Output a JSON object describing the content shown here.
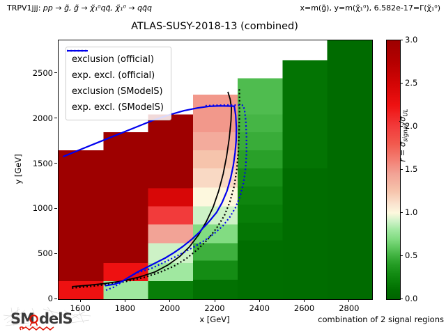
{
  "header": {
    "process_prefix": "TRPV1jjj:",
    "process_math": "pp → g̃, g̃ → χ̃₁⁰qq̄, χ̃₁⁰ → qq̄q",
    "params": "x=m(g̃), y=m(χ̃₁⁰), 6.582e-17=Γ(χ̃₁⁰)"
  },
  "title": "ATLAS-SUSY-2018-13 (combined)",
  "footer": {
    "note": "combination of 2 signal regions"
  },
  "logo": {
    "text_left": "SM",
    "text_right": "delS"
  },
  "chart_data": {
    "type": "heatmap",
    "title": "ATLAS-SUSY-2018-13 (combined)",
    "xlabel": "x [GeV]",
    "ylabel": "y [GeV]",
    "xlim": [
      1500,
      2900
    ],
    "ylim": [
      0,
      2870
    ],
    "x_ticks": [
      1600,
      1800,
      2000,
      2200,
      2400,
      2600,
      2800
    ],
    "y_ticks": [
      0,
      500,
      1000,
      1500,
      2000,
      2500
    ],
    "grid": false,
    "legend_position": "upper left",
    "colorbar": {
      "label_parts": {
        "prefix": "r = σ",
        "sub1": "signal",
        "mid": "/σ",
        "sub2": "UL"
      },
      "ticks": [
        "0.0",
        "0.5",
        "1.0",
        "1.5",
        "2.0",
        "2.5",
        "3.0"
      ],
      "range": [
        0,
        3
      ]
    },
    "colormap": [
      [
        0.0,
        "#006400"
      ],
      [
        0.1,
        "#006e00"
      ],
      [
        0.2,
        "#087e08"
      ],
      [
        0.3,
        "#148c14"
      ],
      [
        0.4,
        "#249c24"
      ],
      [
        0.5,
        "#3eb03e"
      ],
      [
        0.6,
        "#5fc85f"
      ],
      [
        0.7,
        "#82dc82"
      ],
      [
        0.8,
        "#a0e8a0"
      ],
      [
        0.9,
        "#cdf2c6"
      ],
      [
        1.0,
        "#fdf8de"
      ],
      [
        1.1,
        "#fae4d0"
      ],
      [
        1.25,
        "#f6c4ac"
      ],
      [
        1.45,
        "#f2a396"
      ],
      [
        1.6,
        "#f38276"
      ],
      [
        1.8,
        "#f25a4e"
      ],
      [
        2.0,
        "#f23b3b"
      ],
      [
        2.25,
        "#ee1111"
      ],
      [
        2.5,
        "#d20505"
      ],
      [
        2.75,
        "#b40000"
      ],
      [
        3.0,
        "#9e0000"
      ]
    ],
    "cells": [
      [
        1500,
        1700,
        0,
        200,
        2.25
      ],
      [
        1500,
        1700,
        200,
        1650,
        3.0
      ],
      [
        1700,
        1900,
        0,
        200,
        0.8
      ],
      [
        1700,
        1900,
        200,
        400,
        2.25
      ],
      [
        1700,
        1900,
        400,
        1850,
        3.0
      ],
      [
        1900,
        2100,
        0,
        200,
        0.2
      ],
      [
        1900,
        2100,
        200,
        400,
        0.8
      ],
      [
        1900,
        2100,
        400,
        620,
        0.9
      ],
      [
        1900,
        2100,
        620,
        830,
        1.45
      ],
      [
        1900,
        2100,
        830,
        1030,
        2.0
      ],
      [
        1900,
        2100,
        1030,
        1230,
        2.45
      ],
      [
        1900,
        2100,
        1230,
        2050,
        3.0
      ],
      [
        2100,
        2300,
        0,
        215,
        0.12
      ],
      [
        2100,
        2300,
        215,
        430,
        0.3
      ],
      [
        2100,
        2300,
        430,
        620,
        0.5
      ],
      [
        2100,
        2300,
        620,
        830,
        0.7
      ],
      [
        2100,
        2300,
        830,
        1030,
        0.9
      ],
      [
        2100,
        2300,
        1030,
        1240,
        1.0
      ],
      [
        2100,
        2300,
        1240,
        1450,
        1.15
      ],
      [
        2100,
        2300,
        1450,
        1650,
        1.25
      ],
      [
        2100,
        2300,
        1650,
        1850,
        1.4
      ],
      [
        2100,
        2300,
        1850,
        2270,
        1.5
      ],
      [
        2300,
        2500,
        0,
        650,
        0.1
      ],
      [
        2300,
        2500,
        650,
        850,
        0.15
      ],
      [
        2300,
        2500,
        850,
        1050,
        0.2
      ],
      [
        2300,
        2500,
        1050,
        1250,
        0.25
      ],
      [
        2300,
        2500,
        1250,
        1450,
        0.32
      ],
      [
        2300,
        2500,
        1450,
        1650,
        0.42
      ],
      [
        2300,
        2500,
        1650,
        1850,
        0.48
      ],
      [
        2300,
        2500,
        1850,
        2050,
        0.52
      ],
      [
        2300,
        2500,
        2050,
        2450,
        0.55
      ],
      [
        2500,
        2700,
        0,
        1450,
        0.09
      ],
      [
        2500,
        2700,
        1450,
        2650,
        0.14
      ],
      [
        2700,
        2900,
        0,
        2870,
        0.07
      ]
    ],
    "curves": [
      {
        "name": "exclusion (official)",
        "color": "#000000",
        "style": "solid",
        "points": [
          [
            1560,
            140
          ],
          [
            1620,
            152
          ],
          [
            1700,
            172
          ],
          [
            1780,
            200
          ],
          [
            1860,
            245
          ],
          [
            1930,
            302
          ],
          [
            1990,
            382
          ],
          [
            2040,
            472
          ],
          [
            2085,
            582
          ],
          [
            2125,
            712
          ],
          [
            2160,
            860
          ],
          [
            2190,
            1020
          ],
          [
            2215,
            1200
          ],
          [
            2235,
            1390
          ],
          [
            2250,
            1580
          ],
          [
            2262,
            1780
          ],
          [
            2270,
            1980
          ],
          [
            2272,
            2120
          ],
          [
            2266,
            2220
          ],
          [
            2256,
            2300
          ]
        ]
      },
      {
        "name": "exp. excl. (official)",
        "color": "#000000",
        "style": "dotted",
        "points": [
          [
            1560,
            124
          ],
          [
            1640,
            142
          ],
          [
            1720,
            164
          ],
          [
            1800,
            196
          ],
          [
            1880,
            240
          ],
          [
            1950,
            296
          ],
          [
            2015,
            366
          ],
          [
            2070,
            450
          ],
          [
            2120,
            550
          ],
          [
            2165,
            660
          ],
          [
            2205,
            786
          ],
          [
            2240,
            926
          ],
          [
            2265,
            1080
          ],
          [
            2285,
            1260
          ],
          [
            2296,
            1450
          ],
          [
            2303,
            1650
          ],
          [
            2306,
            1860
          ],
          [
            2308,
            2070
          ],
          [
            2308,
            2230
          ],
          [
            2307,
            2345
          ]
        ]
      },
      {
        "name": "exclusion (SModelS)",
        "color": "#0000ee",
        "style": "solid",
        "points": [
          [
            1520,
            1580
          ],
          [
            1600,
            1662
          ],
          [
            1680,
            1742
          ],
          [
            1760,
            1822
          ],
          [
            1840,
            1902
          ],
          [
            1920,
            1982
          ],
          [
            2000,
            2048
          ],
          [
            2060,
            2090
          ],
          [
            2120,
            2120
          ],
          [
            2170,
            2138
          ],
          [
            2220,
            2143
          ],
          [
            2285,
            2140
          ],
          [
            2291,
            2040
          ],
          [
            2294,
            1900
          ],
          [
            2293,
            1760
          ],
          [
            2288,
            1620
          ],
          [
            2280,
            1480
          ],
          [
            2268,
            1340
          ],
          [
            2252,
            1200
          ],
          [
            2230,
            1070
          ],
          [
            2205,
            960
          ],
          [
            2175,
            870
          ],
          [
            2155,
            815
          ],
          [
            2145,
            790
          ],
          [
            2130,
            745
          ],
          [
            2095,
            665
          ],
          [
            2055,
            585
          ],
          [
            2015,
            515
          ],
          [
            1975,
            455
          ],
          [
            1935,
            405
          ],
          [
            1895,
            355
          ],
          [
            1855,
            305
          ],
          [
            1815,
            245
          ],
          [
            1782,
            195
          ],
          [
            1748,
            165
          ],
          [
            1708,
            150
          ]
        ]
      },
      {
        "name": "exp. excl. (SModelS)",
        "color": "#0000ee",
        "style": "dotted",
        "points": [
          [
            1712,
            100
          ],
          [
            1745,
            132
          ],
          [
            1780,
            185
          ],
          [
            1812,
            240
          ],
          [
            1848,
            292
          ],
          [
            1915,
            342
          ],
          [
            1960,
            396
          ],
          [
            2012,
            458
          ],
          [
            2062,
            522
          ],
          [
            2112,
            590
          ],
          [
            2157,
            660
          ],
          [
            2197,
            732
          ],
          [
            2233,
            812
          ],
          [
            2263,
            905
          ],
          [
            2290,
            1015
          ],
          [
            2311,
            1145
          ],
          [
            2326,
            1292
          ],
          [
            2335,
            1450
          ],
          [
            2339,
            1620
          ],
          [
            2339,
            1800
          ],
          [
            2336,
            1980
          ],
          [
            2330,
            2100
          ],
          [
            2324,
            2150
          ],
          [
            2260,
            2154
          ],
          [
            2200,
            2150
          ],
          [
            2148,
            2144
          ]
        ]
      }
    ],
    "legend": [
      "exclusion (official)",
      "exp. excl. (official)",
      "exclusion (SModelS)",
      "exp. excl. (SModelS)"
    ]
  }
}
